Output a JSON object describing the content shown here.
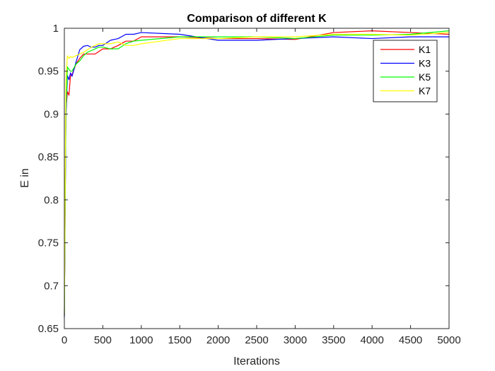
{
  "chart_data": {
    "type": "line",
    "title": "Comparison of different K",
    "xlabel": "Iterations",
    "ylabel": "E in",
    "xlim": [
      0,
      5000
    ],
    "ylim": [
      0.65,
      1
    ],
    "xticks": [
      0,
      500,
      1000,
      1500,
      2000,
      2500,
      3000,
      3500,
      4000,
      4500,
      5000
    ],
    "xtick_labels": [
      "0",
      "500",
      "1000",
      "1500",
      "2000",
      "2500",
      "3000",
      "3500",
      "4000",
      "4500",
      "5000"
    ],
    "yticks": [
      0.65,
      0.7,
      0.75,
      0.8,
      0.85,
      0.9,
      0.95,
      1
    ],
    "ytick_labels": [
      "0.65",
      "0.7",
      "0.75",
      "0.8",
      "0.85",
      "0.9",
      "0.95",
      "1"
    ],
    "grid": false,
    "legend_position": "top-right",
    "series": [
      {
        "name": "K1",
        "color": "#ff0000",
        "x": [
          0,
          20,
          40,
          60,
          80,
          100,
          150,
          200,
          250,
          300,
          350,
          400,
          450,
          500,
          600,
          700,
          800,
          900,
          1000,
          1500,
          2000,
          2500,
          3000,
          3500,
          4000,
          4500,
          5000
        ],
        "y": [
          0.665,
          0.905,
          0.926,
          0.922,
          0.945,
          0.946,
          0.958,
          0.965,
          0.97,
          0.97,
          0.97,
          0.97,
          0.973,
          0.976,
          0.976,
          0.98,
          0.985,
          0.985,
          0.99,
          0.99,
          0.988,
          0.988,
          0.987,
          0.995,
          0.997,
          0.995,
          0.993
        ]
      },
      {
        "name": "K3",
        "color": "#0000ff",
        "x": [
          0,
          20,
          40,
          60,
          80,
          100,
          150,
          200,
          250,
          300,
          350,
          400,
          450,
          500,
          600,
          700,
          800,
          900,
          1000,
          1500,
          2000,
          2500,
          3000,
          3500,
          4000,
          4500,
          5000
        ],
        "y": [
          0.663,
          0.895,
          0.945,
          0.94,
          0.948,
          0.944,
          0.96,
          0.975,
          0.979,
          0.98,
          0.978,
          0.978,
          0.98,
          0.98,
          0.986,
          0.988,
          0.993,
          0.993,
          0.995,
          0.993,
          0.986,
          0.986,
          0.988,
          0.99,
          0.988,
          0.99,
          0.99
        ]
      },
      {
        "name": "K5",
        "color": "#00ff00",
        "x": [
          0,
          20,
          40,
          60,
          80,
          100,
          150,
          200,
          250,
          300,
          350,
          400,
          450,
          500,
          600,
          700,
          800,
          900,
          1000,
          1500,
          2000,
          2500,
          3000,
          3500,
          4000,
          4500,
          5000
        ],
        "y": [
          0.665,
          0.905,
          0.955,
          0.952,
          0.95,
          0.95,
          0.958,
          0.962,
          0.968,
          0.972,
          0.974,
          0.976,
          0.978,
          0.978,
          0.976,
          0.976,
          0.982,
          0.985,
          0.986,
          0.99,
          0.99,
          0.99,
          0.988,
          0.992,
          0.992,
          0.993,
          0.997
        ]
      },
      {
        "name": "K7",
        "color": "#ffff00",
        "x": [
          0,
          20,
          40,
          60,
          80,
          100,
          150,
          200,
          250,
          300,
          350,
          400,
          450,
          500,
          600,
          700,
          800,
          900,
          1000,
          1500,
          2000,
          2500,
          3000,
          3500,
          4000,
          4500,
          5000
        ],
        "y": [
          0.668,
          0.94,
          0.968,
          0.965,
          0.967,
          0.966,
          0.968,
          0.97,
          0.972,
          0.975,
          0.978,
          0.98,
          0.982,
          0.982,
          0.982,
          0.984,
          0.98,
          0.98,
          0.982,
          0.988,
          0.988,
          0.99,
          0.99,
          0.993,
          0.993,
          0.992,
          0.995
        ]
      }
    ]
  }
}
